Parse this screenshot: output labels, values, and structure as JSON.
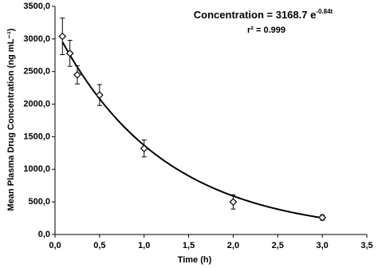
{
  "chart_data": {
    "type": "scatter",
    "x_label": "Time (h)",
    "y_label": "Mean Plasma Drug Concentration (ng mL⁻¹)",
    "x": [
      0.083,
      0.167,
      0.25,
      0.5,
      1,
      2,
      3
    ],
    "values": [
      3040,
      2780,
      2450,
      2140,
      1320,
      500,
      260
    ],
    "errors": [
      280,
      200,
      140,
      160,
      130,
      110,
      40
    ],
    "color": "#000000",
    "xlim": [
      0,
      3.5
    ],
    "xticks": [
      {
        "value": 0,
        "label": "0,0"
      },
      {
        "value": 0.5,
        "label": "0,5"
      },
      {
        "value": 1,
        "label": "1,0"
      },
      {
        "value": 1.5,
        "label": "1,5"
      },
      {
        "value": 2,
        "label": "2,0"
      },
      {
        "value": 2.5,
        "label": "2,5"
      },
      {
        "value": 3,
        "label": "3,0"
      },
      {
        "value": 3.5,
        "label": "3,5"
      }
    ],
    "ylim": [
      0,
      3500
    ],
    "yticks": [
      {
        "value": 0,
        "label": "0,0"
      },
      {
        "value": 500,
        "label": "500,0"
      },
      {
        "value": 1000,
        "label": "1000,0"
      },
      {
        "value": 1500,
        "label": "1500,0"
      },
      {
        "value": 2000,
        "label": "2000,0"
      },
      {
        "value": 2500,
        "label": "2500,0"
      },
      {
        "value": 3000,
        "label": "3000,0"
      },
      {
        "value": 3500,
        "label": "3500,0"
      }
    ],
    "grid": false,
    "fit": {
      "equation": "Concentration = 3168.7 e",
      "exponent": "-0.84t",
      "r2": "r² = 0.999",
      "a": 3168.7,
      "k": -0.84
    }
  }
}
